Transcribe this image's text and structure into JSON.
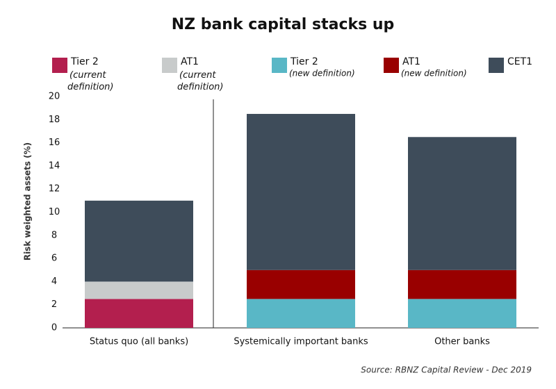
{
  "chart_data": {
    "type": "stacked_bar",
    "title": "NZ bank capital stacks up",
    "y_label": "Risk weighted assets  (%)",
    "source": "Source: RBNZ Capital Review - Dec 2019",
    "categories": [
      "Status quo (all banks)",
      "Systemically important banks",
      "Other banks"
    ],
    "series": [
      {
        "name": "Tier 2",
        "name_note": "(current definition)",
        "color": "#b31f4e",
        "values": [
          2.5,
          null,
          null
        ]
      },
      {
        "name": "AT1",
        "name_note": "(current definition)",
        "color": "#c8cbcb",
        "values": [
          1.5,
          null,
          null
        ]
      },
      {
        "name": "Tier 2",
        "name_note": "(new definition)",
        "color": "#59b7c6",
        "values": [
          null,
          2.5,
          2.5
        ]
      },
      {
        "name": "AT1",
        "name_note": "(new definition)",
        "color": "#990000",
        "values": [
          null,
          2.5,
          2.5
        ]
      },
      {
        "name": "CET1",
        "color": "#3e4c5a",
        "values": [
          7,
          13.5,
          11.5
        ]
      }
    ],
    "ylim": [
      0,
      20
    ],
    "yticks": [
      0,
      2,
      4,
      6,
      8,
      10,
      12,
      14,
      16,
      18,
      20
    ]
  }
}
